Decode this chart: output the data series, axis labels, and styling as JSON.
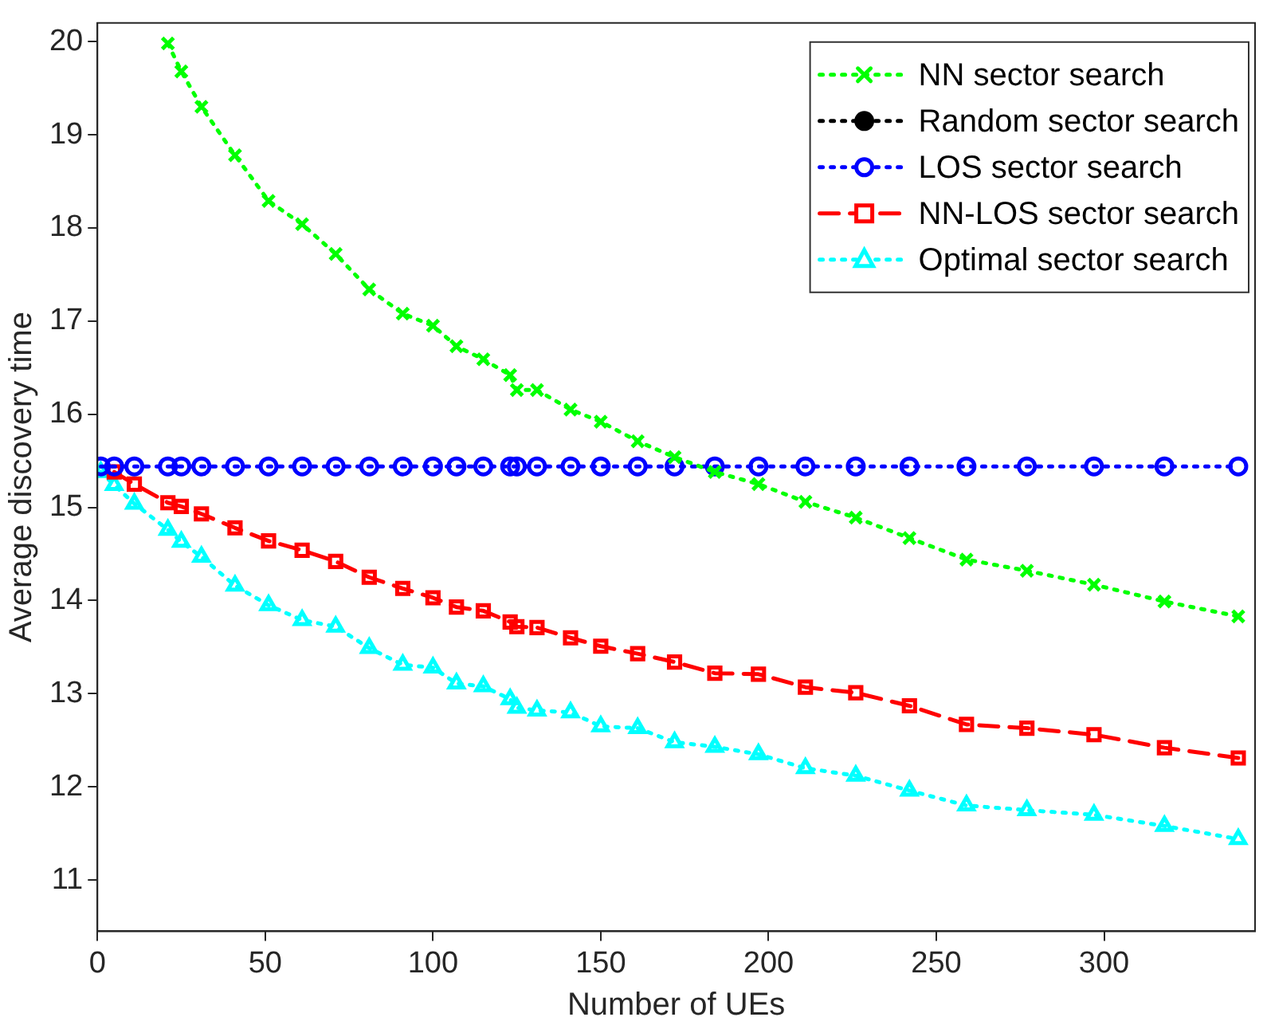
{
  "chart_data": {
    "type": "line",
    "xlabel": "Number of UEs",
    "ylabel": "Average discovery time",
    "x": [
      1,
      5,
      11,
      21,
      25,
      31,
      41,
      51,
      61,
      71,
      81,
      91,
      100,
      107,
      115,
      123,
      125,
      131,
      141,
      150,
      161,
      172,
      184,
      197,
      211,
      226,
      242,
      259,
      277,
      297,
      318,
      340
    ],
    "xlim": [
      0,
      345
    ],
    "xticks": [
      0,
      50,
      100,
      150,
      200,
      250,
      300
    ],
    "ylim": [
      10.45,
      20.2
    ],
    "yticks": [
      11,
      12,
      13,
      14,
      15,
      16,
      17,
      18,
      19,
      20
    ],
    "grid": false,
    "legend": "top right",
    "series": [
      {
        "name": "NN sector search",
        "color": "#00ff00",
        "marker": "cross",
        "line_style": "dotted",
        "values": [
          null,
          null,
          null,
          19.98,
          19.68,
          19.3,
          18.78,
          18.29,
          18.04,
          17.72,
          17.34,
          17.08,
          16.95,
          16.73,
          16.59,
          16.42,
          16.26,
          16.26,
          16.05,
          15.92,
          15.71,
          15.54,
          15.38,
          15.25,
          15.06,
          14.89,
          14.67,
          14.44,
          14.32,
          14.17,
          13.99,
          13.83
        ]
      },
      {
        "name": "Random sector search",
        "color": "#000000",
        "marker": "circle",
        "line_style": "dotted",
        "values": [
          null,
          null,
          null,
          null,
          null,
          null,
          null,
          null,
          null,
          null,
          null,
          null,
          null,
          null,
          null,
          null,
          null,
          null,
          null,
          null,
          null,
          null,
          null,
          null,
          null,
          null,
          null,
          null,
          null,
          null,
          null,
          null
        ]
      },
      {
        "name": "LOS sector search",
        "color": "#0000ff",
        "marker": "circle",
        "line_style": "dotted",
        "values": [
          15.44,
          15.44,
          15.44,
          15.44,
          15.44,
          15.44,
          15.44,
          15.44,
          15.44,
          15.44,
          15.44,
          15.44,
          15.44,
          15.44,
          15.44,
          15.44,
          15.44,
          15.44,
          15.44,
          15.44,
          15.44,
          15.44,
          15.44,
          15.44,
          15.44,
          15.44,
          15.44,
          15.44,
          15.44,
          15.44,
          15.44,
          15.44
        ]
      },
      {
        "name": "NN-LOS sector search",
        "color": "#ff0000",
        "marker": "square",
        "line_style": "dashed",
        "values": [
          null,
          15.38,
          15.25,
          15.05,
          15.01,
          14.93,
          14.78,
          14.64,
          14.54,
          14.42,
          14.25,
          14.13,
          14.03,
          13.93,
          13.89,
          13.77,
          13.72,
          13.71,
          13.6,
          13.51,
          13.43,
          13.34,
          13.22,
          13.21,
          13.07,
          13.01,
          12.87,
          12.67,
          12.63,
          12.56,
          12.42,
          12.31
        ]
      },
      {
        "name": "Optimal sector search",
        "color": "#00ffff",
        "marker": "triangle",
        "line_style": "dotted",
        "values": [
          15.38,
          15.24,
          15.04,
          14.76,
          14.63,
          14.47,
          14.16,
          13.95,
          13.79,
          13.72,
          13.49,
          13.31,
          13.28,
          13.11,
          13.08,
          12.94,
          12.85,
          12.82,
          12.8,
          12.65,
          12.63,
          12.48,
          12.43,
          12.35,
          12.2,
          12.12,
          11.96,
          11.8,
          11.75,
          11.7,
          11.58,
          11.44
        ]
      }
    ]
  }
}
